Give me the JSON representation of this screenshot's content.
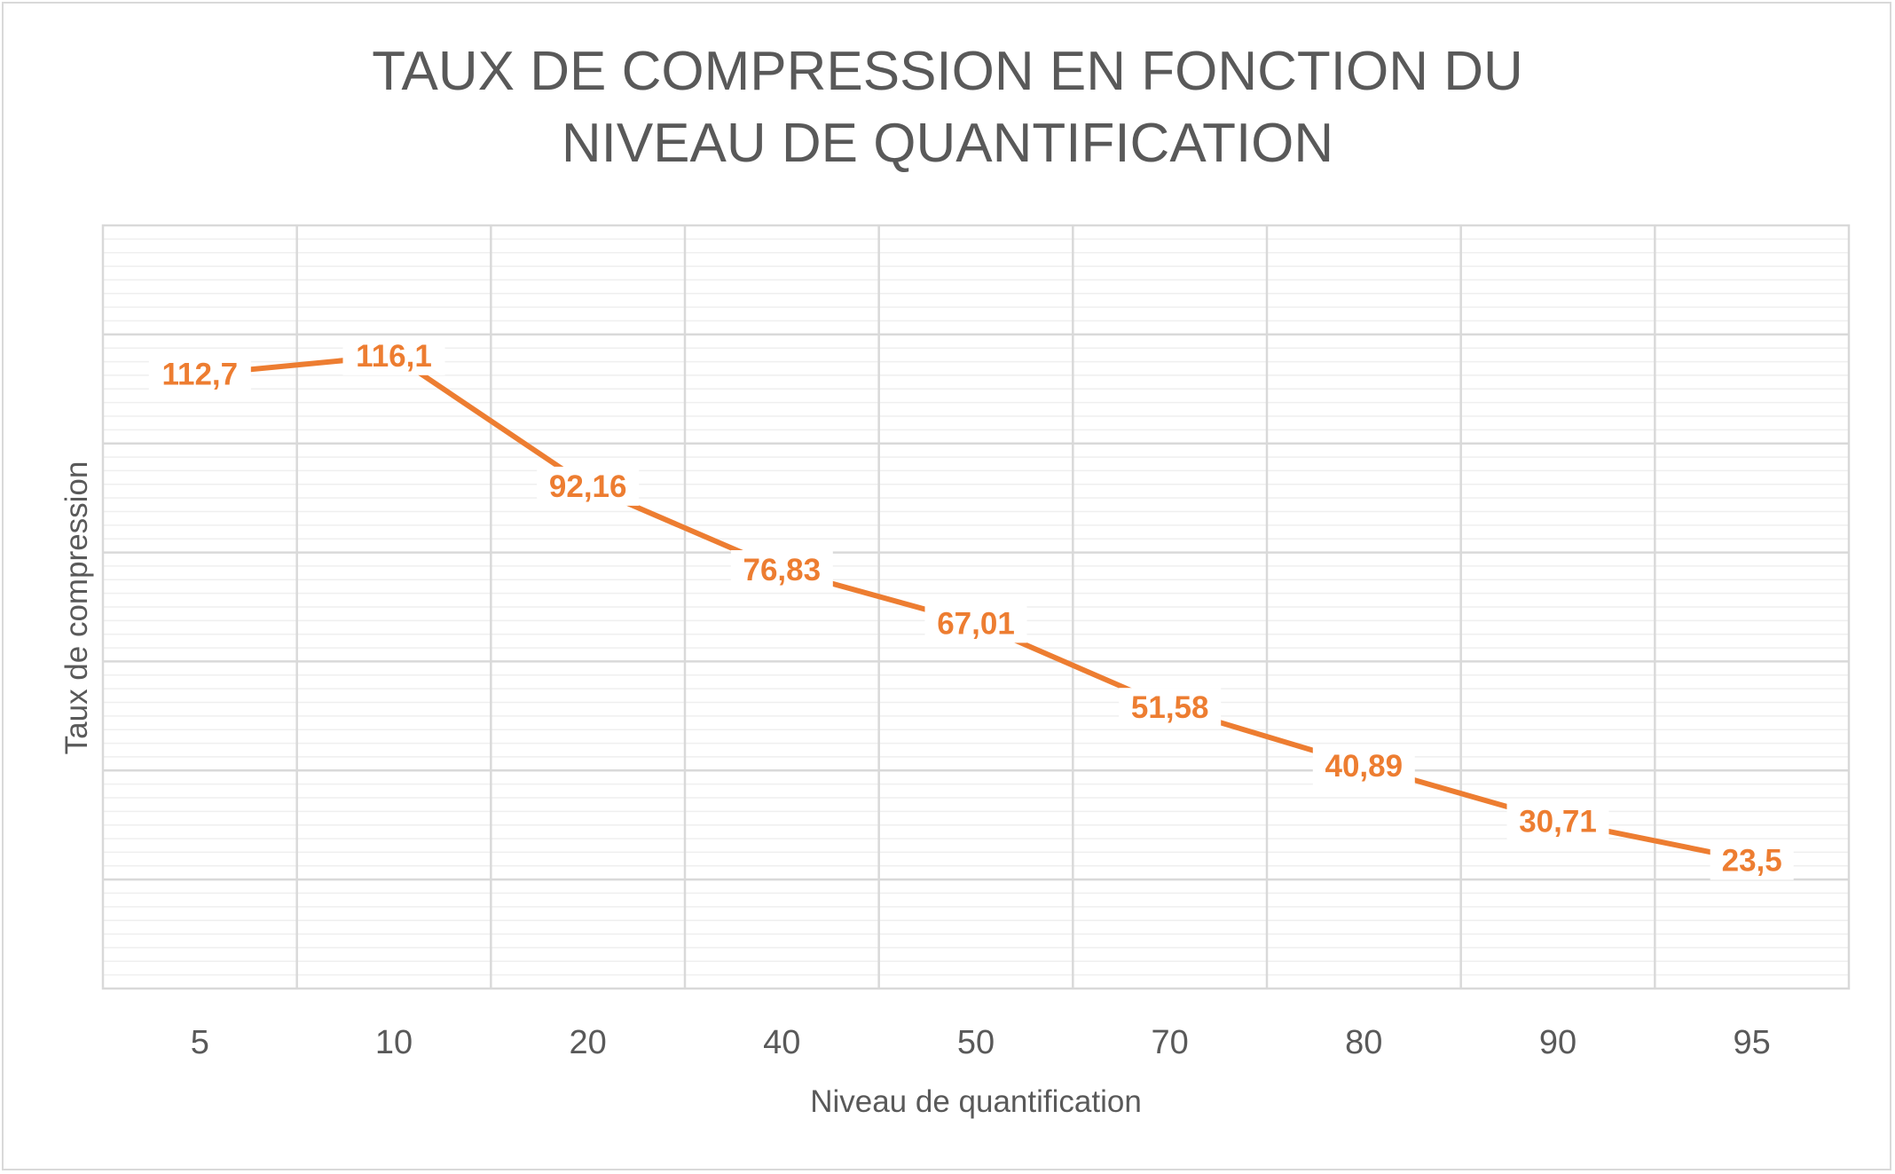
{
  "chart_data": {
    "type": "line",
    "title": "TAUX DE COMPRESSION EN FONCTION DU NIVEAU DE QUANTIFICATION",
    "xlabel": "Niveau de quantification",
    "ylabel": "Taux de compression",
    "categories": [
      "5",
      "10",
      "20",
      "40",
      "50",
      "70",
      "80",
      "90",
      "95"
    ],
    "series": [
      {
        "values": [
          112.7,
          116.1,
          92.16,
          76.83,
          67.01,
          51.58,
          40.89,
          30.71,
          23.5
        ],
        "data_labels": [
          "112,7",
          "116,1",
          "92,16",
          "76,83",
          "67,01",
          "51,58",
          "40,89",
          "30,71",
          "23,5"
        ]
      }
    ],
    "ylim": [
      0,
      140
    ],
    "grid": true,
    "data_labels_shown": true,
    "y_tick_labels_shown": false,
    "colors": {
      "series_line": "#ed7d31",
      "major_grid": "#d9d9d9",
      "minor_grid": "#efefef",
      "text": "#595959",
      "border": "#d9d9d9"
    }
  }
}
